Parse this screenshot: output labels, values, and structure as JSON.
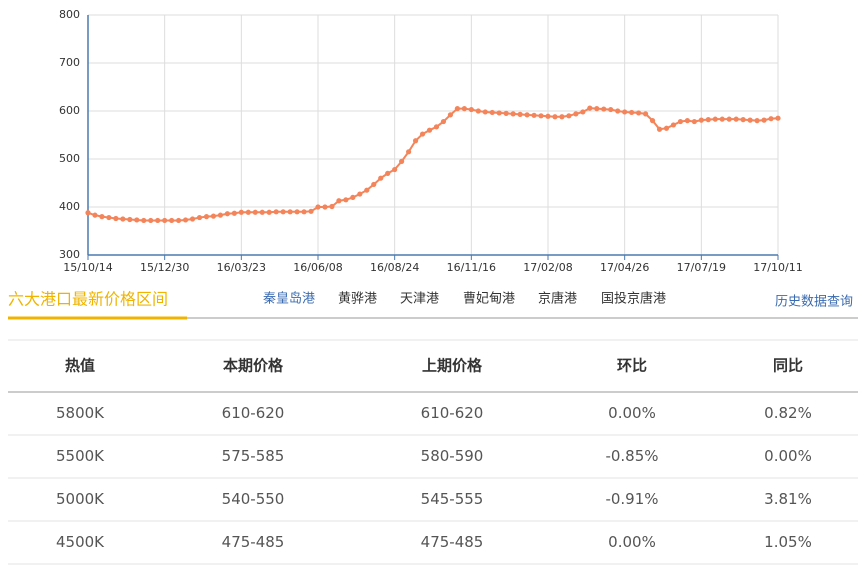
{
  "chart_data": {
    "type": "line",
    "x": [
      "15/10/14",
      null,
      null,
      null,
      null,
      null,
      null,
      null,
      null,
      null,
      null,
      "15/12/30",
      null,
      null,
      null,
      null,
      null,
      null,
      null,
      null,
      null,
      null,
      "16/03/23",
      null,
      null,
      null,
      null,
      null,
      null,
      null,
      null,
      null,
      null,
      "16/06/08",
      null,
      null,
      null,
      null,
      null,
      null,
      null,
      null,
      null,
      null,
      "16/08/24",
      null,
      null,
      null,
      null,
      null,
      null,
      null,
      null,
      null,
      null,
      "16/11/16",
      null,
      null,
      null,
      null,
      null,
      null,
      null,
      null,
      null,
      null,
      "17/02/08",
      null,
      null,
      null,
      null,
      null,
      null,
      null,
      null,
      null,
      null,
      "17/04/26",
      null,
      null,
      null,
      null,
      null,
      null,
      null,
      null,
      null,
      null,
      "17/07/19",
      null,
      null,
      null,
      null,
      null,
      null,
      null,
      null,
      null,
      null,
      "17/10/11"
    ],
    "series": [
      {
        "color": "#f4845a",
        "values": [
          388,
          383,
          380,
          378,
          376,
          375,
          374,
          373,
          372,
          372,
          372,
          372,
          372,
          372,
          373,
          375,
          378,
          380,
          381,
          383,
          386,
          387,
          389,
          389,
          389,
          389,
          389,
          390,
          390,
          390,
          390,
          390,
          391,
          400,
          400,
          401,
          413,
          415,
          420,
          427,
          435,
          447,
          460,
          470,
          478,
          495,
          515,
          538,
          552,
          560,
          567,
          578,
          592,
          605,
          605,
          603,
          600,
          598,
          597,
          596,
          595,
          594,
          593,
          592,
          591,
          590,
          589,
          588,
          588,
          590,
          594,
          598,
          606,
          605,
          604,
          603,
          600,
          598,
          597,
          596,
          594,
          580,
          562,
          564,
          571,
          578,
          580,
          578,
          581,
          582,
          583,
          583,
          583,
          583,
          582,
          581,
          580,
          581,
          584,
          585
        ]
      }
    ],
    "ylim": [
      300,
      800
    ],
    "yticks": [
      300,
      400,
      500,
      600,
      700,
      800
    ],
    "grid": true
  },
  "tabs": {
    "title": "六大港口最新价格区间",
    "ports": [
      "秦皇岛港",
      "黄骅港",
      "天津港",
      "曹妃甸港",
      "京唐港",
      "国投京唐港"
    ],
    "link": "历史数据查询"
  },
  "table": {
    "headers": [
      "热值",
      "本期价格",
      "上期价格",
      "环比",
      "同比"
    ],
    "rows": [
      [
        "5800K",
        "610-620",
        "610-620",
        "0.00%",
        "0.82%"
      ],
      [
        "5500K",
        "575-585",
        "580-590",
        "-0.85%",
        "0.00%"
      ],
      [
        "5000K",
        "540-550",
        "545-555",
        "-0.91%",
        "3.81%"
      ],
      [
        "4500K",
        "475-485",
        "475-485",
        "0.00%",
        "1.05%"
      ]
    ]
  }
}
